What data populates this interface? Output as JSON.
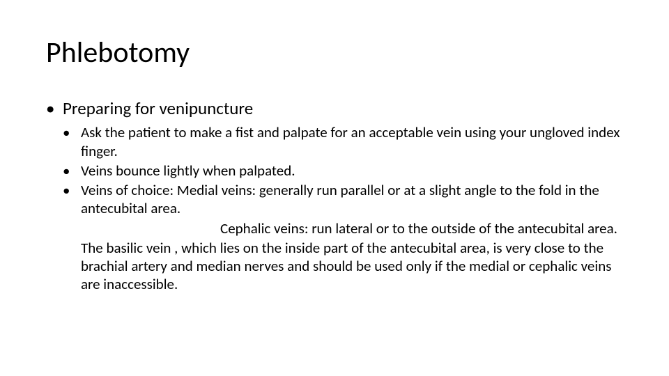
{
  "colors": {
    "background": "#ffffff",
    "text": "#000000"
  },
  "typography": {
    "family": "Calibri",
    "title_fontsize": 42,
    "level1_fontsize": 25,
    "level2_fontsize": 21
  },
  "slide": {
    "title": "Phlebotomy",
    "level1": {
      "item1": "Preparing for venipuncture"
    },
    "level2": {
      "item1": "Ask the patient to make a fist and palpate for an acceptable vein using your ungloved index finger.",
      "item2": "Veins bounce lightly when palpated.",
      "item3": "Veins of choice:  Medial veins: generally run parallel or at a slight angle to the fold in the antecubital area.",
      "item3_sub1": "Cephalic veins:  run lateral or to the outside of the antecubital area.",
      "body_text": "The basilic vein , which lies on the inside part of the antecubital area, is very close to the brachial artery and median nerves and should be used only if the medial or cephalic veins are inaccessible."
    }
  }
}
